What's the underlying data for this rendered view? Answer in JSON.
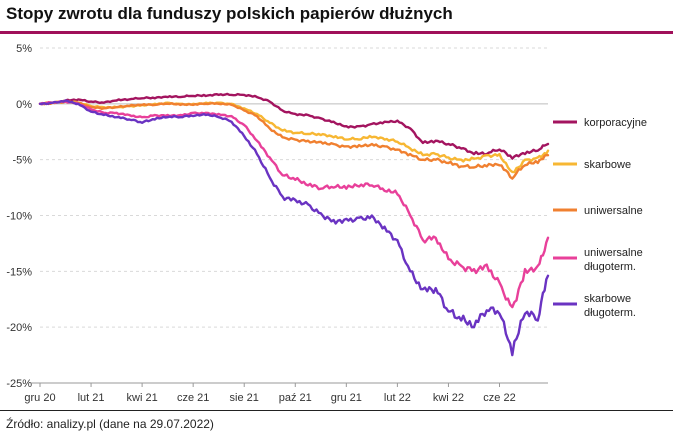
{
  "title": "Stopy zwrotu dla funduszy polskich papierów dłużnych",
  "source": "Źródło: analizy.pl (dane na 29.07.2022)",
  "chart_data": {
    "type": "line",
    "title": "Stopy zwrotu dla funduszy polskich papierów dłużnych",
    "xlabel": "",
    "ylabel": "",
    "ylim": [
      -25,
      5
    ],
    "yticks": [
      5,
      0,
      -5,
      -10,
      -15,
      -20,
      -25
    ],
    "ytick_labels": [
      "5%",
      "0%",
      "-5%",
      "-10%",
      "-15%",
      "-20%",
      "-25%"
    ],
    "xtick_labels": [
      "gru 20",
      "lut 21",
      "kwi 21",
      "cze 21",
      "sie 21",
      "paź 21",
      "gru 21",
      "lut 22",
      "kwi 22",
      "cze 22"
    ],
    "x_unit": "months since start of Dec 2020",
    "x": [
      0,
      0.5,
      1,
      1.5,
      2,
      2.5,
      3,
      3.5,
      4,
      4.5,
      5,
      5.5,
      6,
      6.5,
      7,
      7.5,
      8,
      8.5,
      9,
      9.5,
      10,
      10.5,
      11,
      11.5,
      12,
      12.5,
      13,
      13.5,
      14,
      14.5,
      15,
      15.5,
      16,
      16.5,
      17,
      17.5,
      18,
      18.5,
      19,
      19.5,
      19.9
    ],
    "grid": true,
    "legend_position": "right",
    "series": [
      {
        "name": "korporacyjne",
        "color": "#a3145f",
        "values": [
          0,
          0.1,
          0.3,
          0.4,
          0.2,
          0.1,
          0.3,
          0.4,
          0.5,
          0.5,
          0.6,
          0.6,
          0.7,
          0.7,
          0.8,
          0.8,
          0.8,
          0.6,
          0.2,
          -0.6,
          -0.9,
          -1.0,
          -1.3,
          -1.6,
          -2.0,
          -2.0,
          -1.8,
          -1.6,
          -1.5,
          -2.2,
          -3.5,
          -3.3,
          -3.6,
          -4.0,
          -4.5,
          -4.5,
          -4.1,
          -4.9,
          -4.5,
          -4.2,
          -3.6
        ]
      },
      {
        "name": "skarbowe",
        "color": "#f7b733",
        "values": [
          0,
          0.1,
          0.2,
          0.1,
          -0.2,
          -0.3,
          -0.3,
          -0.2,
          -0.1,
          0.0,
          0.1,
          0.0,
          0.0,
          0.1,
          0.1,
          0.0,
          -0.4,
          -0.9,
          -1.7,
          -2.4,
          -2.6,
          -2.7,
          -2.8,
          -3.0,
          -3.2,
          -3.2,
          -3.0,
          -3.2,
          -3.4,
          -4.0,
          -4.6,
          -4.5,
          -4.8,
          -5.0,
          -4.9,
          -4.6,
          -4.5,
          -6.1,
          -5.0,
          -4.8,
          -4.2
        ]
      },
      {
        "name": "uniwersalne",
        "color": "#f08030",
        "values": [
          0,
          0.1,
          0.2,
          0.1,
          -0.3,
          -0.4,
          -0.3,
          -0.2,
          -0.1,
          -0.1,
          0.0,
          -0.1,
          -0.1,
          0.0,
          0.0,
          -0.1,
          -0.6,
          -1.1,
          -2.2,
          -3.0,
          -3.2,
          -3.3,
          -3.4,
          -3.6,
          -3.8,
          -3.7,
          -3.6,
          -3.8,
          -4.1,
          -4.5,
          -5.0,
          -5.0,
          -5.3,
          -5.6,
          -5.7,
          -5.6,
          -5.5,
          -6.7,
          -5.5,
          -5.3,
          -4.6
        ]
      },
      {
        "name": "uniwersalne długoterm.",
        "color": "#e8409a",
        "values": [
          0,
          0.1,
          0.2,
          0.0,
          -0.5,
          -0.8,
          -0.8,
          -1.0,
          -1.2,
          -1.0,
          -1.0,
          -1.0,
          -0.8,
          -0.8,
          -0.9,
          -1.1,
          -1.9,
          -3.3,
          -4.8,
          -6.4,
          -6.8,
          -7.3,
          -7.6,
          -7.5,
          -7.6,
          -7.4,
          -7.3,
          -7.8,
          -8.1,
          -10.0,
          -12.2,
          -12.0,
          -13.9,
          -14.5,
          -14.8,
          -14.4,
          -16.0,
          -18.2,
          -14.8,
          -14.5,
          -12.0
        ]
      },
      {
        "name": "skarbowe długoterm.",
        "color": "#6a33c2",
        "values": [
          0,
          0.1,
          0.3,
          0.0,
          -0.7,
          -1.0,
          -1.2,
          -1.4,
          -1.7,
          -1.4,
          -1.2,
          -1.2,
          -1.1,
          -1.0,
          -1.2,
          -1.6,
          -2.9,
          -4.5,
          -6.6,
          -8.3,
          -8.6,
          -9.0,
          -9.8,
          -10.4,
          -10.3,
          -10.2,
          -10.0,
          -11.0,
          -12.2,
          -15.0,
          -16.6,
          -16.5,
          -18.6,
          -19.4,
          -20.0,
          -18.5,
          -18.8,
          -22.5,
          -18.8,
          -19.4,
          -15.4
        ]
      }
    ],
    "legend": [
      {
        "series": "korporacyjne",
        "lines": [
          "korporacyjne"
        ]
      },
      {
        "series": "skarbowe",
        "lines": [
          "skarbowe"
        ]
      },
      {
        "series": "uniwersalne",
        "lines": [
          "uniwersalne"
        ]
      },
      {
        "series": "uniwersalne długoterm.",
        "lines": [
          "uniwersalne",
          "długoterm."
        ]
      },
      {
        "series": "skarbowe długoterm.",
        "lines": [
          "skarbowe",
          "długoterm."
        ]
      }
    ]
  }
}
